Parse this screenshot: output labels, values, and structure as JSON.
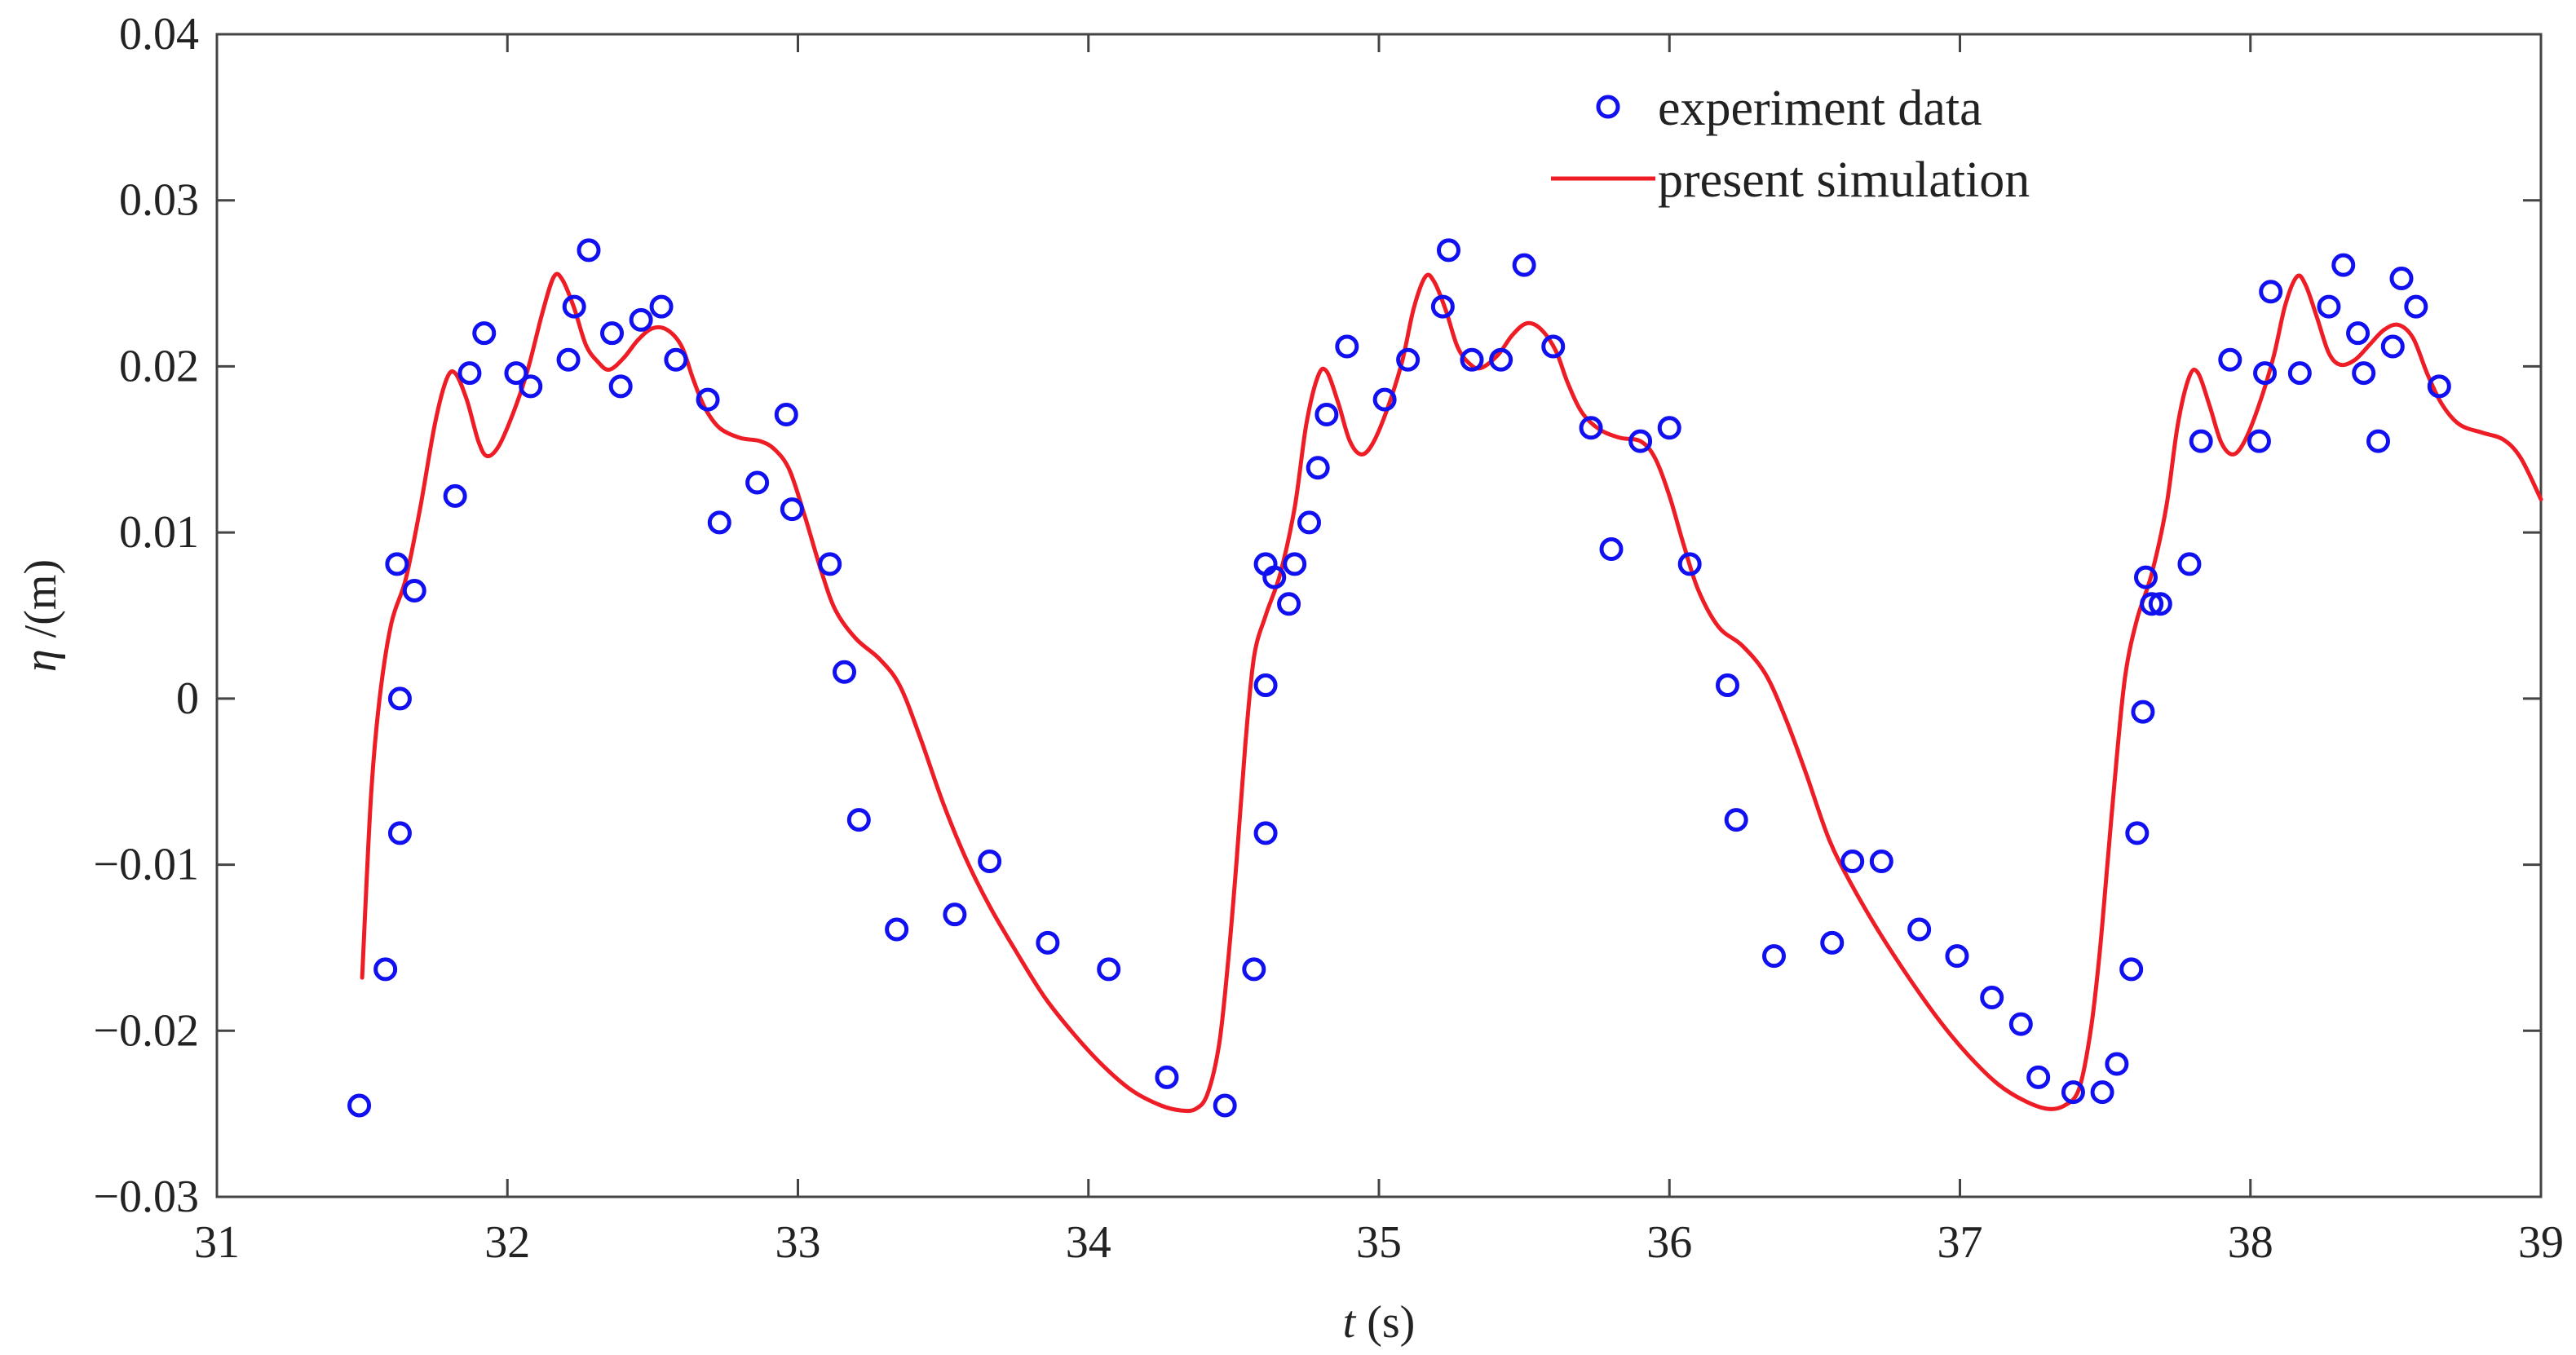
{
  "colors": {
    "experiment": "#1010f0",
    "simulation": "#ee1c24",
    "axis": "#444444",
    "background": "#ffffff"
  },
  "chart_data": {
    "type": "line",
    "title": "",
    "xlabel_var": "t",
    "xlabel_unit": " (s)",
    "ylabel_var": "η",
    "ylabel_unit": " /(m)",
    "xlim": [
      31,
      39
    ],
    "ylim": [
      -0.03,
      0.04
    ],
    "x_ticks": [
      31,
      32,
      33,
      34,
      35,
      36,
      37,
      38,
      39
    ],
    "x_tick_labels": [
      "31",
      "32",
      "33",
      "34",
      "35",
      "36",
      "37",
      "38",
      "39"
    ],
    "y_ticks": [
      -0.03,
      -0.02,
      -0.01,
      0,
      0.01,
      0.02,
      0.03,
      0.04
    ],
    "y_tick_labels": [
      "−0.03",
      "−0.02",
      "−0.01",
      "0",
      "0.01",
      "0.02",
      "0.03",
      "0.04"
    ],
    "grid": false,
    "legend_position": "top-right",
    "series": [
      {
        "name": "experiment data",
        "style": "markers",
        "marker": "circle",
        "points": [
          [
            31.49,
            -0.0245
          ],
          [
            31.58,
            -0.0163
          ],
          [
            31.62,
            0.0081
          ],
          [
            31.63,
            0.0
          ],
          [
            31.63,
            -0.0081
          ],
          [
            31.68,
            0.0065
          ],
          [
            31.82,
            0.0122
          ],
          [
            31.87,
            0.0196
          ],
          [
            31.92,
            0.022
          ],
          [
            32.03,
            0.0196
          ],
          [
            32.08,
            0.0188
          ],
          [
            32.21,
            0.0204
          ],
          [
            32.23,
            0.0236
          ],
          [
            32.28,
            0.027
          ],
          [
            32.36,
            0.022
          ],
          [
            32.39,
            0.0188
          ],
          [
            32.46,
            0.0228
          ],
          [
            32.53,
            0.0236
          ],
          [
            32.58,
            0.0204
          ],
          [
            32.69,
            0.018
          ],
          [
            32.73,
            0.0106
          ],
          [
            32.86,
            0.013
          ],
          [
            32.96,
            0.0171
          ],
          [
            32.98,
            0.0114
          ],
          [
            33.11,
            0.0081
          ],
          [
            33.16,
            0.0016
          ],
          [
            33.21,
            -0.0073
          ],
          [
            33.34,
            -0.0139
          ],
          [
            33.54,
            -0.013
          ],
          [
            33.66,
            -0.0098
          ],
          [
            33.86,
            -0.0147
          ],
          [
            34.07,
            -0.0163
          ],
          [
            34.27,
            -0.0228
          ],
          [
            34.47,
            -0.0245
          ],
          [
            34.57,
            -0.0163
          ],
          [
            34.61,
            -0.0081
          ],
          [
            34.61,
            0.0008
          ],
          [
            34.61,
            0.0081
          ],
          [
            34.64,
            0.0073
          ],
          [
            34.69,
            0.0057
          ],
          [
            34.71,
            0.0081
          ],
          [
            34.76,
            0.0106
          ],
          [
            34.79,
            0.0139
          ],
          [
            34.82,
            0.0171
          ],
          [
            34.89,
            0.0212
          ],
          [
            35.02,
            0.018
          ],
          [
            35.1,
            0.0204
          ],
          [
            35.22,
            0.0236
          ],
          [
            35.24,
            0.027
          ],
          [
            35.32,
            0.0204
          ],
          [
            35.42,
            0.0204
          ],
          [
            35.5,
            0.0261
          ],
          [
            35.6,
            0.0212
          ],
          [
            35.73,
            0.0163
          ],
          [
            35.8,
            0.009
          ],
          [
            35.9,
            0.0155
          ],
          [
            36.0,
            0.0163
          ],
          [
            36.07,
            0.0081
          ],
          [
            36.2,
            0.0008
          ],
          [
            36.23,
            -0.0073
          ],
          [
            36.36,
            -0.0155
          ],
          [
            36.56,
            -0.0147
          ],
          [
            36.63,
            -0.0098
          ],
          [
            36.73,
            -0.0098
          ],
          [
            36.86,
            -0.0139
          ],
          [
            36.99,
            -0.0155
          ],
          [
            37.11,
            -0.018
          ],
          [
            37.21,
            -0.0196
          ],
          [
            37.27,
            -0.0228
          ],
          [
            37.39,
            -0.0237
          ],
          [
            37.49,
            -0.0237
          ],
          [
            37.54,
            -0.022
          ],
          [
            37.59,
            -0.0163
          ],
          [
            37.61,
            -0.0081
          ],
          [
            37.63,
            -0.0008
          ],
          [
            37.64,
            0.0073
          ],
          [
            37.66,
            0.0057
          ],
          [
            37.69,
            0.0057
          ],
          [
            37.79,
            0.0081
          ],
          [
            37.83,
            0.0155
          ],
          [
            37.93,
            0.0204
          ],
          [
            38.03,
            0.0155
          ],
          [
            38.05,
            0.0196
          ],
          [
            38.07,
            0.0245
          ],
          [
            38.17,
            0.0196
          ],
          [
            38.27,
            0.0236
          ],
          [
            38.32,
            0.0261
          ],
          [
            38.37,
            0.022
          ],
          [
            38.39,
            0.0196
          ],
          [
            38.44,
            0.0155
          ],
          [
            38.49,
            0.0212
          ],
          [
            38.52,
            0.0253
          ],
          [
            38.57,
            0.0236
          ],
          [
            38.65,
            0.0188
          ]
        ]
      },
      {
        "name": "present simulation",
        "style": "line",
        "points": [
          [
            31.5,
            -0.0168
          ],
          [
            31.53,
            -0.006
          ],
          [
            31.56,
            0.0
          ],
          [
            31.6,
            0.0045
          ],
          [
            31.65,
            0.0072
          ],
          [
            31.7,
            0.0115
          ],
          [
            31.75,
            0.0165
          ],
          [
            31.79,
            0.0192
          ],
          [
            31.82,
            0.0196
          ],
          [
            31.86,
            0.018
          ],
          [
            31.9,
            0.0155
          ],
          [
            31.93,
            0.0146
          ],
          [
            31.97,
            0.0152
          ],
          [
            32.02,
            0.0172
          ],
          [
            32.07,
            0.0198
          ],
          [
            32.12,
            0.0232
          ],
          [
            32.16,
            0.0254
          ],
          [
            32.19,
            0.0252
          ],
          [
            32.23,
            0.0235
          ],
          [
            32.27,
            0.0213
          ],
          [
            32.31,
            0.0203
          ],
          [
            32.35,
            0.0198
          ],
          [
            32.4,
            0.0205
          ],
          [
            32.45,
            0.0216
          ],
          [
            32.5,
            0.0223
          ],
          [
            32.55,
            0.0222
          ],
          [
            32.6,
            0.0212
          ],
          [
            32.64,
            0.0192
          ],
          [
            32.68,
            0.0175
          ],
          [
            32.73,
            0.0163
          ],
          [
            32.8,
            0.0157
          ],
          [
            32.87,
            0.0155
          ],
          [
            32.92,
            0.015
          ],
          [
            32.97,
            0.0138
          ],
          [
            33.02,
            0.0112
          ],
          [
            33.08,
            0.0077
          ],
          [
            33.13,
            0.0053
          ],
          [
            33.2,
            0.0036
          ],
          [
            33.28,
            0.0024
          ],
          [
            33.35,
            0.0008
          ],
          [
            33.42,
            -0.0023
          ],
          [
            33.5,
            -0.0063
          ],
          [
            33.58,
            -0.0097
          ],
          [
            33.66,
            -0.0125
          ],
          [
            33.75,
            -0.0152
          ],
          [
            33.85,
            -0.018
          ],
          [
            33.95,
            -0.0202
          ],
          [
            34.05,
            -0.0221
          ],
          [
            34.15,
            -0.0236
          ],
          [
            34.25,
            -0.0245
          ],
          [
            34.32,
            -0.0248
          ],
          [
            34.37,
            -0.0247
          ],
          [
            34.41,
            -0.0238
          ],
          [
            34.45,
            -0.0208
          ],
          [
            34.48,
            -0.016
          ],
          [
            34.51,
            -0.0098
          ],
          [
            34.54,
            -0.0028
          ],
          [
            34.57,
            0.0025
          ],
          [
            34.61,
            0.005
          ],
          [
            34.66,
            0.0075
          ],
          [
            34.71,
            0.0115
          ],
          [
            34.75,
            0.0165
          ],
          [
            34.79,
            0.0194
          ],
          [
            34.82,
            0.0197
          ],
          [
            34.86,
            0.0178
          ],
          [
            34.9,
            0.0155
          ],
          [
            34.94,
            0.0147
          ],
          [
            34.98,
            0.0154
          ],
          [
            35.03,
            0.0175
          ],
          [
            35.08,
            0.0203
          ],
          [
            35.12,
            0.0235
          ],
          [
            35.16,
            0.0254
          ],
          [
            35.19,
            0.0251
          ],
          [
            35.23,
            0.0234
          ],
          [
            35.27,
            0.0212
          ],
          [
            35.31,
            0.0202
          ],
          [
            35.35,
            0.0199
          ],
          [
            35.41,
            0.0207
          ],
          [
            35.46,
            0.0219
          ],
          [
            35.51,
            0.0226
          ],
          [
            35.56,
            0.0222
          ],
          [
            35.61,
            0.0209
          ],
          [
            35.65,
            0.019
          ],
          [
            35.7,
            0.0172
          ],
          [
            35.76,
            0.0162
          ],
          [
            35.83,
            0.0157
          ],
          [
            35.9,
            0.0155
          ],
          [
            35.95,
            0.0145
          ],
          [
            36.0,
            0.0122
          ],
          [
            36.05,
            0.0092
          ],
          [
            36.1,
            0.0065
          ],
          [
            36.17,
            0.0043
          ],
          [
            36.25,
            0.0032
          ],
          [
            36.33,
            0.0015
          ],
          [
            36.4,
            -0.0012
          ],
          [
            36.47,
            -0.0045
          ],
          [
            36.55,
            -0.0085
          ],
          [
            36.63,
            -0.0113
          ],
          [
            36.72,
            -0.014
          ],
          [
            36.82,
            -0.0167
          ],
          [
            36.93,
            -0.0194
          ],
          [
            37.03,
            -0.0215
          ],
          [
            37.13,
            -0.0232
          ],
          [
            37.22,
            -0.0242
          ],
          [
            37.3,
            -0.0247
          ],
          [
            37.36,
            -0.0245
          ],
          [
            37.41,
            -0.0235
          ],
          [
            37.45,
            -0.02
          ],
          [
            37.48,
            -0.0155
          ],
          [
            37.51,
            -0.0095
          ],
          [
            37.54,
            -0.0035
          ],
          [
            37.57,
            0.0015
          ],
          [
            37.61,
            0.0048
          ],
          [
            37.66,
            0.0075
          ],
          [
            37.71,
            0.0115
          ],
          [
            37.75,
            0.0165
          ],
          [
            37.79,
            0.0194
          ],
          [
            37.82,
            0.0196
          ],
          [
            37.86,
            0.0176
          ],
          [
            37.9,
            0.0154
          ],
          [
            37.94,
            0.0147
          ],
          [
            37.98,
            0.0155
          ],
          [
            38.03,
            0.0177
          ],
          [
            38.08,
            0.0206
          ],
          [
            38.12,
            0.0237
          ],
          [
            38.16,
            0.0254
          ],
          [
            38.19,
            0.0249
          ],
          [
            38.23,
            0.0229
          ],
          [
            38.27,
            0.0208
          ],
          [
            38.31,
            0.0201
          ],
          [
            38.36,
            0.0204
          ],
          [
            38.41,
            0.0213
          ],
          [
            38.46,
            0.0222
          ],
          [
            38.51,
            0.0225
          ],
          [
            38.56,
            0.0217
          ],
          [
            38.61,
            0.0195
          ],
          [
            38.66,
            0.0177
          ],
          [
            38.72,
            0.0165
          ],
          [
            38.8,
            0.016
          ],
          [
            38.87,
            0.0156
          ],
          [
            38.93,
            0.0145
          ],
          [
            39.0,
            0.012
          ]
        ]
      }
    ]
  }
}
